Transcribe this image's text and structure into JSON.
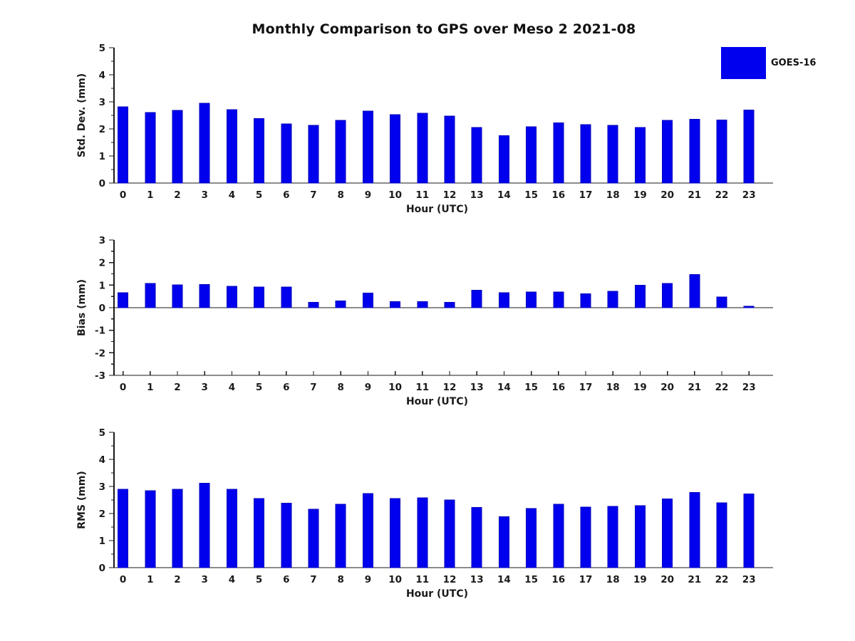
{
  "figure": {
    "title": "Monthly Comparison to GPS over Meso 2 2021-08",
    "legend": {
      "label": "GOES-16",
      "swatch_color": "#0000ee"
    },
    "colors": {
      "bar_fill": "#0000ee",
      "bar_edge": "#0000bb",
      "text": "#1a1a1a",
      "axis": "#1a1a1a",
      "background": "#ffffff"
    }
  },
  "chart_data": [
    {
      "type": "bar",
      "name": "std-dev",
      "ylabel": "Std. Dev. (mm)",
      "xlabel": "Hour (UTC)",
      "legend": "GOES-16",
      "categories": [
        "0",
        "1",
        "2",
        "3",
        "4",
        "5",
        "6",
        "7",
        "8",
        "9",
        "10",
        "11",
        "12",
        "13",
        "14",
        "15",
        "16",
        "17",
        "18",
        "19",
        "20",
        "21",
        "22",
        "23"
      ],
      "values": [
        2.82,
        2.61,
        2.69,
        2.95,
        2.71,
        2.38,
        2.19,
        2.13,
        2.32,
        2.66,
        2.53,
        2.58,
        2.47,
        2.05,
        1.75,
        2.08,
        2.22,
        2.16,
        2.13,
        2.05,
        2.32,
        2.35,
        2.33,
        2.7
      ],
      "ylim": [
        0,
        5
      ],
      "yticks": [
        0,
        1,
        2,
        3,
        4,
        5
      ],
      "minor_tick_step": 0.5,
      "baseline": 0,
      "grid": false,
      "x_bottom_ticks_visible": false
    },
    {
      "type": "bar",
      "name": "bias",
      "ylabel": "Bias (mm)",
      "xlabel": "Hour (UTC)",
      "legend": "GOES-16",
      "categories": [
        "0",
        "1",
        "2",
        "3",
        "4",
        "5",
        "6",
        "7",
        "8",
        "9",
        "10",
        "11",
        "12",
        "13",
        "14",
        "15",
        "16",
        "17",
        "18",
        "19",
        "20",
        "21",
        "22",
        "23"
      ],
      "values": [
        0.67,
        1.07,
        1.01,
        1.03,
        0.95,
        0.92,
        0.92,
        0.23,
        0.3,
        0.64,
        0.27,
        0.27,
        0.23,
        0.78,
        0.66,
        0.69,
        0.69,
        0.61,
        0.73,
        1.0,
        1.07,
        1.47,
        0.48,
        0.07
      ],
      "ylim": [
        -3,
        3
      ],
      "yticks": [
        -3,
        -2,
        -1,
        0,
        1,
        2,
        3
      ],
      "minor_tick_step": 0.5,
      "baseline": 0,
      "grid": false,
      "x_bottom_ticks_visible": true
    },
    {
      "type": "bar",
      "name": "rms",
      "ylabel": "RMS (mm)",
      "xlabel": "Hour (UTC)",
      "legend": "GOES-16",
      "categories": [
        "0",
        "1",
        "2",
        "3",
        "4",
        "5",
        "6",
        "7",
        "8",
        "9",
        "10",
        "11",
        "12",
        "13",
        "14",
        "15",
        "16",
        "17",
        "18",
        "19",
        "20",
        "21",
        "22",
        "23"
      ],
      "values": [
        2.89,
        2.84,
        2.89,
        3.12,
        2.89,
        2.55,
        2.38,
        2.16,
        2.34,
        2.74,
        2.55,
        2.58,
        2.5,
        2.23,
        1.88,
        2.18,
        2.34,
        2.24,
        2.26,
        2.29,
        2.54,
        2.78,
        2.39,
        2.72
      ],
      "ylim": [
        0,
        5
      ],
      "yticks": [
        0,
        1,
        2,
        3,
        4,
        5
      ],
      "minor_tick_step": 0.5,
      "baseline": 0,
      "grid": false,
      "x_bottom_ticks_visible": false
    }
  ]
}
